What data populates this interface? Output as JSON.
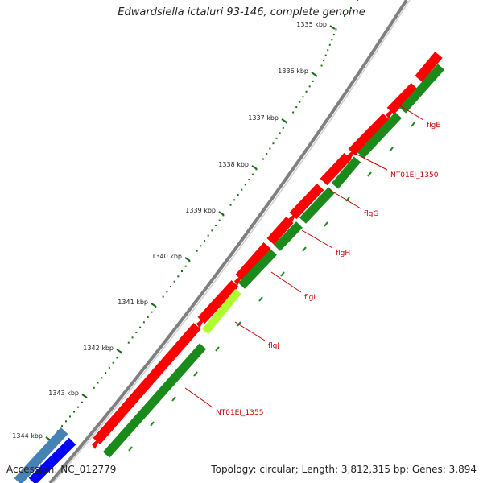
{
  "title": "Edwardsiella ictaluri 93-146, complete genome",
  "accession": "Accession: NC_012779",
  "summary": "Topology: circular; Length: 3,812,315 bp; Genes: 3,894",
  "colors": {
    "backbone": "#808080",
    "forward_feature": "#ff0000",
    "reverse_feature": "#1a8a1a",
    "highlight_feature": "#adff2f",
    "tick": "#1a6e1a",
    "gene_label": "#cc0000",
    "blue_feature": "#0000ff",
    "steel_feature": "#4682b4"
  },
  "kbp_labels": [
    "1335 kbp",
    "1336 kbp",
    "1337 kbp",
    "1338 kbp",
    "1339 kbp",
    "1340 kbp",
    "1341 kbp",
    "1342 kbp",
    "1343 kbp",
    "1344 kbp"
  ],
  "gene_labels": [
    "flgE",
    "NT01EI_1350",
    "flgG",
    "flgH",
    "flgI",
    "flgJ",
    "NT01EI_1355"
  ]
}
